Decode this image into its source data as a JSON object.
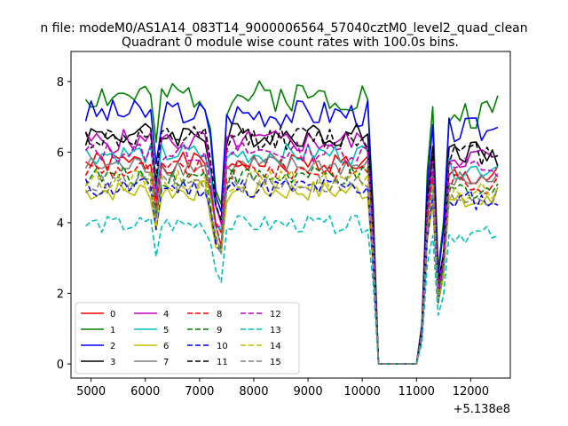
{
  "chart_data": {
    "type": "line",
    "suptitle": "n file: modeM0/AS1A14_083T14_9000006564_57040cztM0_level2_quad_clean",
    "title": "Quadrant 0 module wise count rates with 100.0s bins.",
    "xlabel": "",
    "ylabel": "",
    "x_offset_label": "+5.138e8",
    "x_range": [
      4630,
      12730
    ],
    "ylim": [
      -0.4,
      8.85
    ],
    "x_ticks": [
      5000,
      6000,
      7000,
      8000,
      9000,
      10000,
      11000,
      12000
    ],
    "x_tick_labels": [
      "5000",
      "6000",
      "7000",
      "8000",
      "9000",
      "10000",
      "11000",
      "12000"
    ],
    "y_ticks": [
      0,
      2,
      4,
      6,
      8
    ],
    "y_tick_labels": [
      "0",
      "2",
      "4",
      "6",
      "8"
    ],
    "legend_position": "lower-left",
    "legend_columns": 4,
    "time_bins": {
      "segment1": {
        "start": 4900,
        "end": 10200,
        "step": 100
      },
      "gap_values": [
        10300,
        10400,
        10500,
        10600,
        10700,
        10800,
        10900,
        11000
      ],
      "segment2": {
        "start": 11100,
        "end": 12500,
        "step": 100
      },
      "gap_rate": 0
    },
    "series": [
      {
        "name": "0",
        "color": "#ff0000",
        "dash": "solid",
        "level": 5.7,
        "amp": 0.3,
        "seed": 1,
        "end": 5.6,
        "dip_scale": 0.62
      },
      {
        "name": "1",
        "color": "#008000",
        "dash": "solid",
        "level": 7.6,
        "amp": 0.45,
        "seed": 2,
        "end": 7.6,
        "dip_scale": 0.64
      },
      {
        "name": "2",
        "color": "#0000ff",
        "dash": "solid",
        "level": 7.1,
        "amp": 0.4,
        "seed": 3,
        "end": 6.7,
        "dip_scale": 0.6
      },
      {
        "name": "3",
        "color": "#000000",
        "dash": "solid",
        "level": 6.5,
        "amp": 0.35,
        "seed": 4,
        "end": 5.6,
        "dip_scale": 0.6
      },
      {
        "name": "4",
        "color": "#bf00bf",
        "dash": "solid",
        "level": 6.3,
        "amp": 0.35,
        "seed": 5,
        "end": 5.9,
        "dip_scale": 0.55
      },
      {
        "name": "5",
        "color": "#00bfbf",
        "dash": "solid",
        "level": 5.95,
        "amp": 0.3,
        "seed": 6,
        "end": 5.6,
        "dip_scale": 0.58
      },
      {
        "name": "6",
        "color": "#bfbf00",
        "dash": "solid",
        "level": 4.9,
        "amp": 0.3,
        "seed": 7,
        "end": 5.0,
        "dip_scale": 0.6
      },
      {
        "name": "7",
        "color": "#808080",
        "dash": "solid",
        "level": 5.6,
        "amp": 0.3,
        "seed": 8,
        "end": 5.4,
        "dip_scale": 0.6
      },
      {
        "name": "8",
        "color": "#ff0000",
        "dash": "dashed",
        "level": 5.5,
        "amp": 0.3,
        "seed": 9,
        "end": 5.3,
        "dip_scale": 0.6
      },
      {
        "name": "9",
        "color": "#008000",
        "dash": "dashed",
        "level": 5.3,
        "amp": 0.3,
        "seed": 10,
        "end": 5.1,
        "dip_scale": 0.6
      },
      {
        "name": "10",
        "color": "#0000ff",
        "dash": "dashed",
        "level": 5.0,
        "amp": 0.3,
        "seed": 11,
        "end": 4.5,
        "dip_scale": 0.6
      },
      {
        "name": "11",
        "color": "#000000",
        "dash": "dashed",
        "level": 6.4,
        "amp": 0.35,
        "seed": 12,
        "end": 5.9,
        "dip_scale": 0.62
      },
      {
        "name": "12",
        "color": "#bf00bf",
        "dash": "dashed",
        "level": 6.0,
        "amp": 0.3,
        "seed": 13,
        "end": 5.3,
        "dip_scale": 0.6
      },
      {
        "name": "13",
        "color": "#00bfbf",
        "dash": "dashed",
        "level": 3.95,
        "amp": 0.25,
        "seed": 14,
        "end": 3.65,
        "dip_scale": 0.6
      },
      {
        "name": "14",
        "color": "#bfbf00",
        "dash": "dashed",
        "level": 5.2,
        "amp": 0.3,
        "seed": 15,
        "end": 5.0,
        "dip_scale": 0.6
      },
      {
        "name": "15",
        "color": "#808080",
        "dash": "dashed",
        "level": 5.1,
        "amp": 0.3,
        "seed": 16,
        "end": 5.0,
        "dip_scale": 0.6
      }
    ],
    "dips": [
      {
        "x": 6200,
        "depth": 0.78,
        "note": "narrow dip near 6200"
      },
      {
        "x": 7300,
        "depth": 0.68,
        "note": "deep dip"
      },
      {
        "x": 7400,
        "depth": 0.62,
        "note": "deep dip"
      },
      {
        "x": 11500,
        "depth": 0.55,
        "note": "dip after egress"
      }
    ]
  }
}
